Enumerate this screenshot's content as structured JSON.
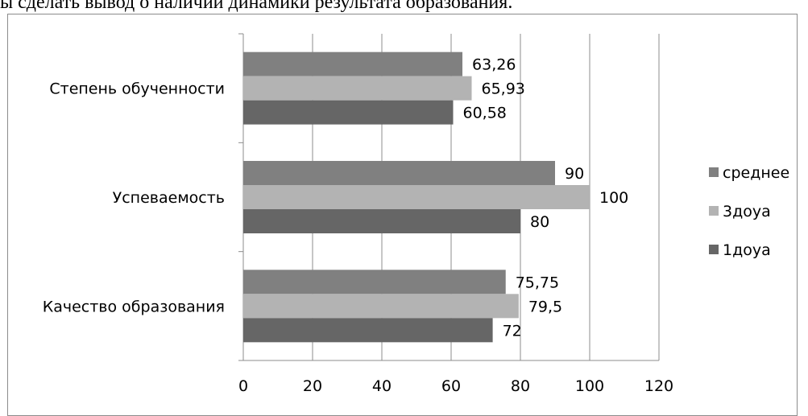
{
  "header_text": "ы сделать вывод о наличии динамики результата образования.",
  "chart_data": {
    "type": "bar",
    "orientation": "horizontal",
    "categories": [
      "Степень обученности",
      "Успеваемость",
      "Качество образования"
    ],
    "series": [
      {
        "name": "среднее",
        "color": "#808080",
        "values": [
          63.26,
          90,
          75.75
        ],
        "labels": [
          "63,26",
          "90",
          "75,75"
        ]
      },
      {
        "name": "3доуа",
        "color": "#b3b3b3",
        "values": [
          65.93,
          100,
          79.5
        ],
        "labels": [
          "65,93",
          "100",
          "79,5"
        ]
      },
      {
        "name": "1доуа",
        "color": "#666666",
        "values": [
          60.58,
          80,
          72
        ],
        "labels": [
          "60,58",
          "80",
          "72"
        ]
      }
    ],
    "xlim": [
      0,
      120
    ],
    "xticks": [
      0,
      20,
      40,
      60,
      80,
      100,
      120
    ],
    "grid": true,
    "legend": "right"
  }
}
